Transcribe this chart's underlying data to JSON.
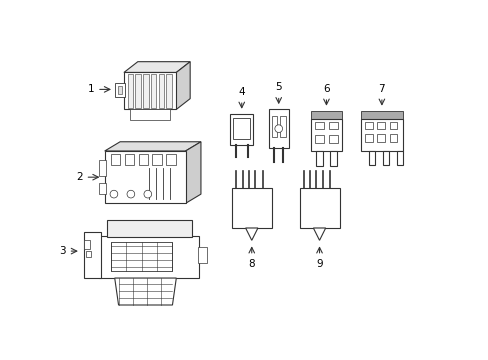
{
  "bg_color": "#ffffff",
  "line_color": "#333333",
  "gray_fill": "#bbbbbb",
  "mid_gray": "#999999",
  "light_gray": "#dddddd",
  "fig_width": 4.89,
  "fig_height": 3.6,
  "dpi": 100
}
